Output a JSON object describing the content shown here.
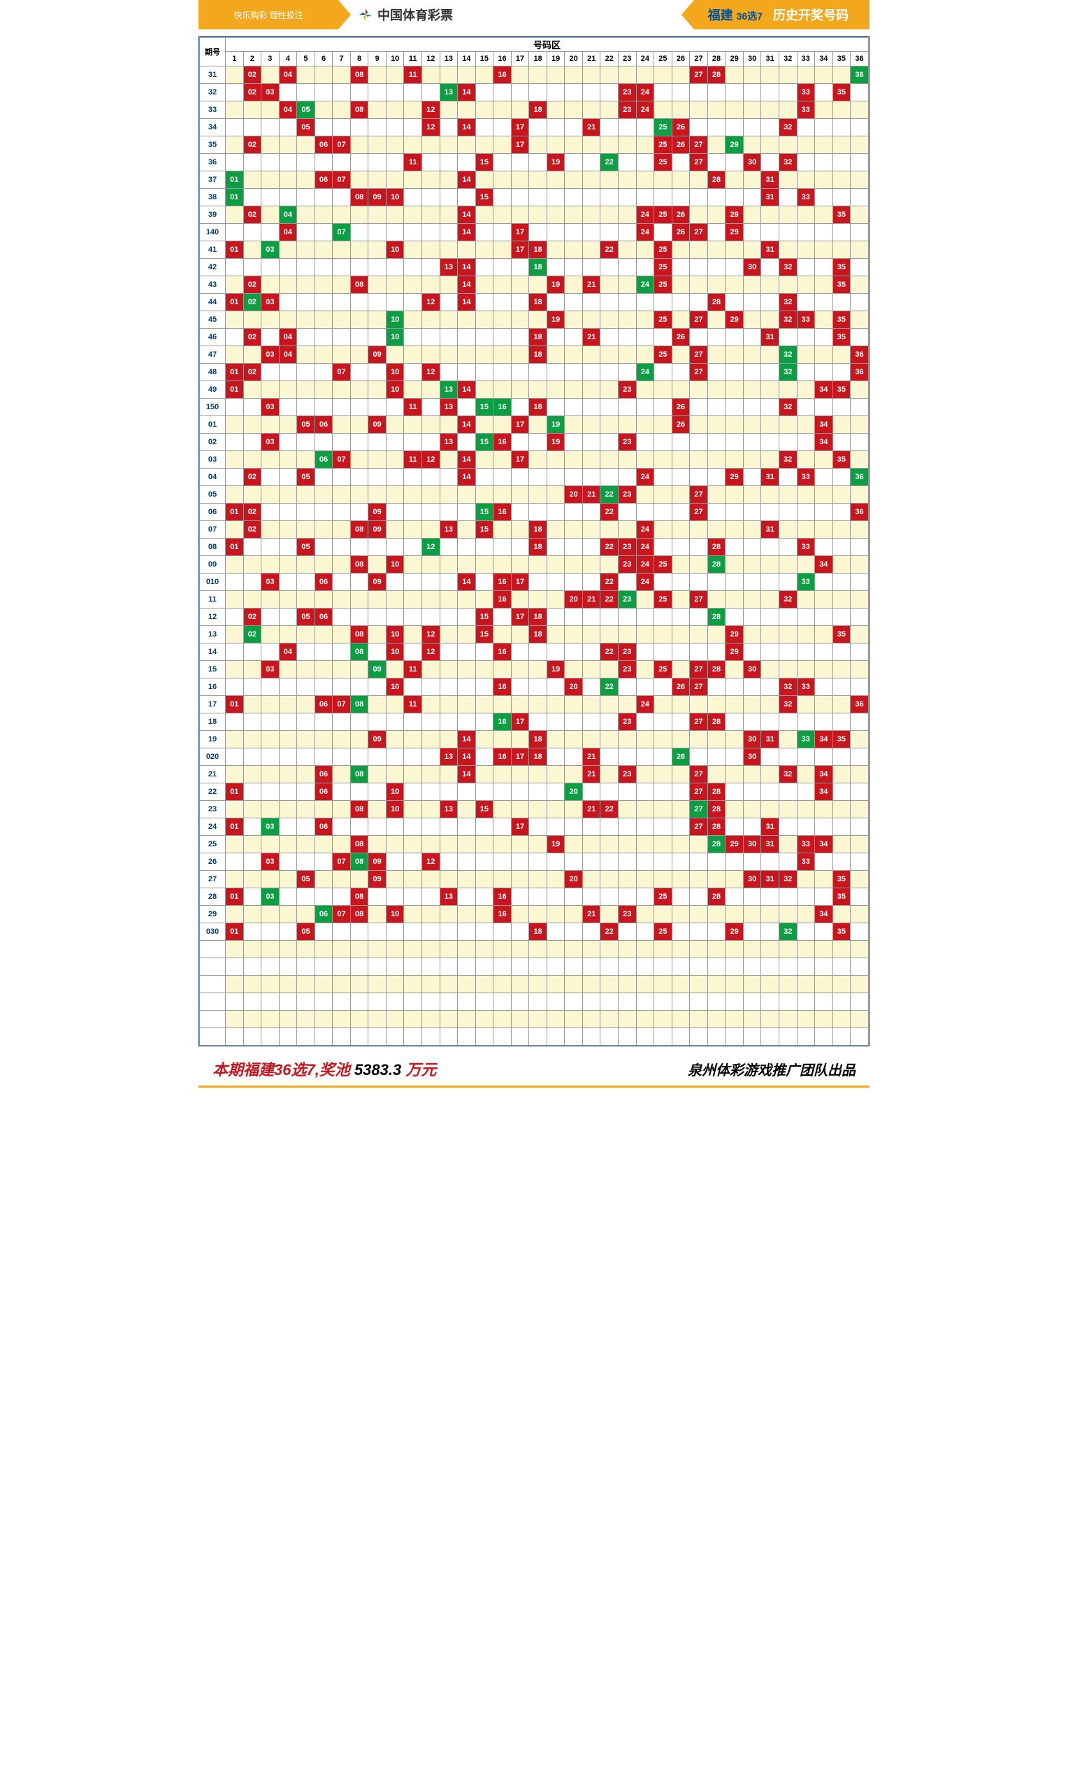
{
  "header": {
    "slogan": "快乐购彩  理性投注",
    "logo": "中国体育彩票",
    "region": "福建",
    "game": "36选7",
    "title": "历史开奖号码"
  },
  "columns": {
    "period": "期号",
    "section": "号码区",
    "count": 36
  },
  "colors": {
    "hit": "#c9151e",
    "special": "#0b9e42",
    "alt_row": "#fbf7d3",
    "border": "#999999",
    "period_text": "#003d7a",
    "header_bg": "#f3a71d"
  },
  "cell_style": {
    "font_size": 11,
    "height": 24
  },
  "rows": [
    {
      "p": "31",
      "n": [
        2,
        4,
        8,
        11,
        16,
        27,
        28
      ],
      "s": [
        36
      ]
    },
    {
      "p": "32",
      "n": [
        2,
        3,
        14,
        23,
        24,
        33,
        35
      ],
      "s": [
        13
      ]
    },
    {
      "p": "33",
      "n": [
        4,
        8,
        12,
        18,
        23,
        24,
        33
      ],
      "s": [
        5
      ]
    },
    {
      "p": "34",
      "n": [
        5,
        12,
        14,
        17,
        21,
        26,
        32
      ],
      "s": [
        25
      ]
    },
    {
      "p": "35",
      "n": [
        2,
        6,
        7,
        17,
        25,
        26,
        27
      ],
      "s": [
        29
      ]
    },
    {
      "p": "36",
      "n": [
        11,
        15,
        19,
        25,
        27,
        30,
        32
      ],
      "s": [
        22
      ]
    },
    {
      "p": "37",
      "n": [
        6,
        7,
        14,
        28,
        31
      ],
      "s": [
        1
      ],
      "extra": []
    },
    {
      "p": "38",
      "n": [
        8,
        9,
        10,
        15,
        31,
        33
      ],
      "s": [
        1
      ]
    },
    {
      "p": "39",
      "n": [
        2,
        14,
        24,
        25,
        26,
        29,
        35
      ],
      "s": [
        4
      ]
    },
    {
      "p": "140",
      "n": [
        4,
        14,
        17,
        24,
        26,
        27,
        29
      ],
      "s": [
        7
      ]
    },
    {
      "p": "41",
      "n": [
        1,
        10,
        17,
        18,
        22,
        25,
        31
      ],
      "s": [
        3
      ]
    },
    {
      "p": "42",
      "n": [
        13,
        14,
        25,
        30,
        32,
        35
      ],
      "s": [
        18
      ]
    },
    {
      "p": "43",
      "n": [
        2,
        8,
        14,
        19,
        21,
        25,
        35
      ],
      "s": [
        24
      ]
    },
    {
      "p": "44",
      "n": [
        1,
        3,
        12,
        14,
        18,
        28,
        32
      ],
      "s": [
        2
      ]
    },
    {
      "p": "45",
      "n": [
        19,
        25,
        27,
        29,
        32,
        33,
        35
      ],
      "s": [
        10
      ]
    },
    {
      "p": "46",
      "n": [
        2,
        4,
        18,
        21,
        26,
        31,
        35
      ],
      "s": [
        10
      ]
    },
    {
      "p": "47",
      "n": [
        3,
        4,
        9,
        18,
        25,
        27,
        36
      ],
      "s": [
        32
      ]
    },
    {
      "p": "48",
      "n": [
        1,
        2,
        7,
        10,
        12,
        27,
        36
      ],
      "s": [
        24
      ],
      "extra": [
        32
      ]
    },
    {
      "p": "49",
      "n": [
        1,
        10,
        14,
        23,
        34,
        35
      ],
      "s": [
        13
      ]
    },
    {
      "p": "150",
      "n": [
        3,
        11,
        13,
        18,
        26,
        32
      ],
      "s": [
        15,
        16
      ]
    },
    {
      "p": "01",
      "n": [
        5,
        6,
        9,
        14,
        17,
        26,
        34
      ],
      "s": [
        19
      ]
    },
    {
      "p": "02",
      "n": [
        3,
        13,
        16,
        19,
        23,
        34
      ],
      "s": [
        15
      ]
    },
    {
      "p": "03",
      "n": [
        7,
        11,
        12,
        14,
        17,
        32,
        35
      ],
      "s": [
        6
      ]
    },
    {
      "p": "04",
      "n": [
        2,
        5,
        14,
        24,
        29,
        31,
        33
      ],
      "s": [
        36
      ]
    },
    {
      "p": "05",
      "n": [
        20,
        21,
        23,
        27
      ],
      "s": [
        22
      ]
    },
    {
      "p": "06",
      "n": [
        1,
        2,
        9,
        16,
        22,
        27,
        36
      ],
      "s": [
        15
      ]
    },
    {
      "p": "07",
      "n": [
        2,
        8,
        9,
        13,
        15,
        18,
        24,
        31
      ],
      "s": []
    },
    {
      "p": "08",
      "n": [
        1,
        5,
        18,
        22,
        23,
        24,
        28,
        33
      ],
      "s": [
        12
      ]
    },
    {
      "p": "09",
      "n": [
        8,
        10,
        23,
        24,
        25,
        34
      ],
      "s": [
        28
      ]
    },
    {
      "p": "010",
      "n": [
        3,
        6,
        9,
        14,
        16,
        17,
        22,
        24
      ],
      "s": [
        33
      ]
    },
    {
      "p": "11",
      "n": [
        16,
        20,
        21,
        22,
        25,
        27,
        32
      ],
      "s": [
        23
      ]
    },
    {
      "p": "12",
      "n": [
        2,
        5,
        6,
        15,
        17,
        18
      ],
      "s": [
        28
      ]
    },
    {
      "p": "13",
      "n": [
        8,
        10,
        12,
        15,
        18,
        29,
        35
      ],
      "s": [
        2
      ]
    },
    {
      "p": "14",
      "n": [
        4,
        10,
        12,
        16,
        22,
        23,
        29
      ],
      "s": [
        8
      ]
    },
    {
      "p": "15",
      "n": [
        3,
        11,
        19,
        23,
        25,
        27,
        28,
        30
      ],
      "s": [
        9
      ]
    },
    {
      "p": "16",
      "n": [
        10,
        16,
        20,
        26,
        27,
        32,
        33
      ],
      "s": [
        22
      ]
    },
    {
      "p": "17",
      "n": [
        1,
        6,
        7,
        11,
        24,
        32,
        36
      ],
      "s": [
        8
      ]
    },
    {
      "p": "18",
      "n": [
        17,
        23,
        27,
        28
      ],
      "s": [
        16
      ]
    },
    {
      "p": "19",
      "n": [
        9,
        14,
        18,
        30,
        31,
        34,
        35
      ],
      "s": [
        33
      ]
    },
    {
      "p": "020",
      "n": [
        13,
        14,
        16,
        17,
        18,
        21,
        30
      ],
      "s": [
        26
      ]
    },
    {
      "p": "21",
      "n": [
        6,
        14,
        21,
        23,
        27,
        32,
        34
      ],
      "s": [
        8
      ]
    },
    {
      "p": "22",
      "n": [
        1,
        6,
        10,
        27,
        28,
        34
      ],
      "s": [
        20
      ]
    },
    {
      "p": "23",
      "n": [
        8,
        10,
        13,
        15,
        21,
        22,
        28
      ],
      "s": [
        27
      ]
    },
    {
      "p": "24",
      "n": [
        1,
        6,
        17,
        27,
        28,
        31
      ],
      "s": [
        3
      ]
    },
    {
      "p": "25",
      "n": [
        8,
        19,
        29,
        30,
        31,
        33,
        34
      ],
      "s": [
        28
      ]
    },
    {
      "p": "26",
      "n": [
        3,
        7,
        9,
        12,
        33
      ],
      "s": [
        8
      ]
    },
    {
      "p": "27",
      "n": [
        5,
        9,
        20,
        30,
        31,
        32,
        35
      ],
      "s": []
    },
    {
      "p": "28",
      "n": [
        1,
        8,
        13,
        16,
        25,
        28,
        35
      ],
      "s": [
        3
      ]
    },
    {
      "p": "29",
      "n": [
        7,
        8,
        10,
        16,
        21,
        23,
        34
      ],
      "s": [
        6
      ]
    },
    {
      "p": "030",
      "n": [
        1,
        5,
        18,
        22,
        25,
        29,
        35
      ],
      "s": [
        32
      ]
    }
  ],
  "empty_rows": 6,
  "footer": {
    "prefix": "本期福建36选7,奖池 ",
    "amount": "5383.3",
    "suffix": " 万元",
    "publisher": "泉州体彩游戏推广团队出品"
  }
}
